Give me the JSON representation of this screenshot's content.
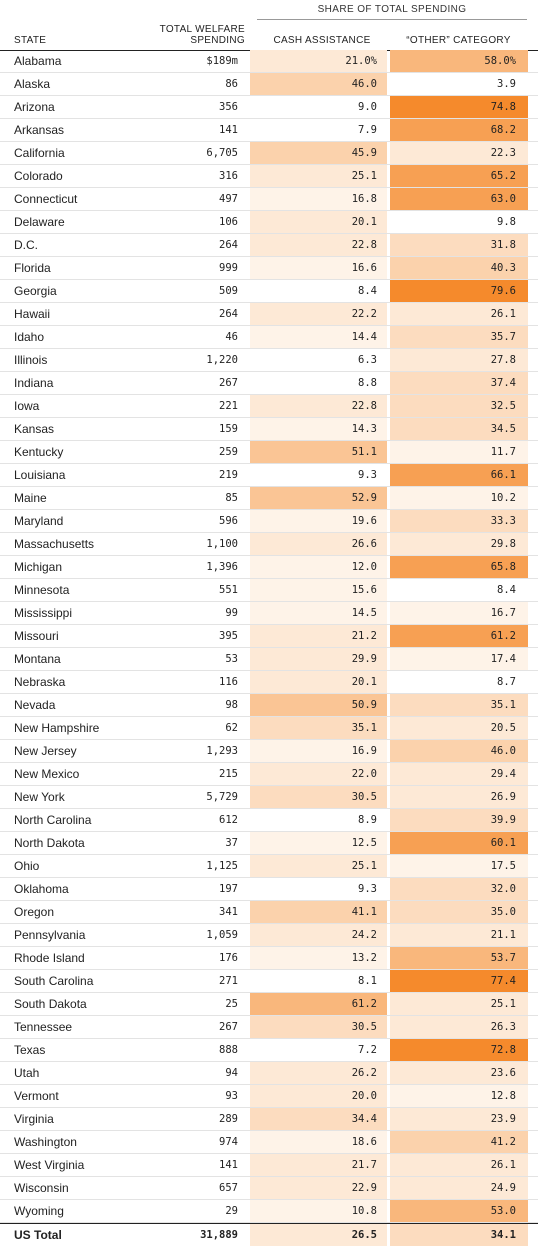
{
  "header": {
    "group_label": "SHARE OF TOTAL SPENDING",
    "state_label": "STATE",
    "total_label_1": "TOTAL WELFARE",
    "total_label_2": "SPENDING",
    "cash_label": "CASH ASSISTANCE",
    "other_label": "“OTHER” CATEGORY"
  },
  "colors": {
    "scale": [
      "#ffffff",
      "#fde9d6",
      "#fbd2ac",
      "#f9b77c",
      "#f7a053",
      "#f58a2c"
    ]
  },
  "rows": [
    {
      "state": "Alabama",
      "total": "$189m",
      "cash": "21.0%",
      "other": "58.0%",
      "cash_v": 21.0,
      "other_v": 58.0
    },
    {
      "state": "Alaska",
      "total": "86",
      "cash": "46.0",
      "other": "3.9",
      "cash_v": 46.0,
      "other_v": 3.9
    },
    {
      "state": "Arizona",
      "total": "356",
      "cash": "9.0",
      "other": "74.8",
      "cash_v": 9.0,
      "other_v": 74.8
    },
    {
      "state": "Arkansas",
      "total": "141",
      "cash": "7.9",
      "other": "68.2",
      "cash_v": 7.9,
      "other_v": 68.2
    },
    {
      "state": "California",
      "total": "6,705",
      "cash": "45.9",
      "other": "22.3",
      "cash_v": 45.9,
      "other_v": 22.3
    },
    {
      "state": "Colorado",
      "total": "316",
      "cash": "25.1",
      "other": "65.2",
      "cash_v": 25.1,
      "other_v": 65.2
    },
    {
      "state": "Connecticut",
      "total": "497",
      "cash": "16.8",
      "other": "63.0",
      "cash_v": 16.8,
      "other_v": 63.0
    },
    {
      "state": "Delaware",
      "total": "106",
      "cash": "20.1",
      "other": "9.8",
      "cash_v": 20.1,
      "other_v": 9.8
    },
    {
      "state": "D.C.",
      "total": "264",
      "cash": "22.8",
      "other": "31.8",
      "cash_v": 22.8,
      "other_v": 31.8
    },
    {
      "state": "Florida",
      "total": "999",
      "cash": "16.6",
      "other": "40.3",
      "cash_v": 16.6,
      "other_v": 40.3
    },
    {
      "state": "Georgia",
      "total": "509",
      "cash": "8.4",
      "other": "79.6",
      "cash_v": 8.4,
      "other_v": 79.6
    },
    {
      "state": "Hawaii",
      "total": "264",
      "cash": "22.2",
      "other": "26.1",
      "cash_v": 22.2,
      "other_v": 26.1
    },
    {
      "state": "Idaho",
      "total": "46",
      "cash": "14.4",
      "other": "35.7",
      "cash_v": 14.4,
      "other_v": 35.7
    },
    {
      "state": "Illinois",
      "total": "1,220",
      "cash": "6.3",
      "other": "27.8",
      "cash_v": 6.3,
      "other_v": 27.8
    },
    {
      "state": "Indiana",
      "total": "267",
      "cash": "8.8",
      "other": "37.4",
      "cash_v": 8.8,
      "other_v": 37.4
    },
    {
      "state": "Iowa",
      "total": "221",
      "cash": "22.8",
      "other": "32.5",
      "cash_v": 22.8,
      "other_v": 32.5
    },
    {
      "state": "Kansas",
      "total": "159",
      "cash": "14.3",
      "other": "34.5",
      "cash_v": 14.3,
      "other_v": 34.5
    },
    {
      "state": "Kentucky",
      "total": "259",
      "cash": "51.1",
      "other": "11.7",
      "cash_v": 51.1,
      "other_v": 11.7
    },
    {
      "state": "Louisiana",
      "total": "219",
      "cash": "9.3",
      "other": "66.1",
      "cash_v": 9.3,
      "other_v": 66.1
    },
    {
      "state": "Maine",
      "total": "85",
      "cash": "52.9",
      "other": "10.2",
      "cash_v": 52.9,
      "other_v": 10.2
    },
    {
      "state": "Maryland",
      "total": "596",
      "cash": "19.6",
      "other": "33.3",
      "cash_v": 19.6,
      "other_v": 33.3
    },
    {
      "state": "Massachusetts",
      "total": "1,100",
      "cash": "26.6",
      "other": "29.8",
      "cash_v": 26.6,
      "other_v": 29.8
    },
    {
      "state": "Michigan",
      "total": "1,396",
      "cash": "12.0",
      "other": "65.8",
      "cash_v": 12.0,
      "other_v": 65.8
    },
    {
      "state": "Minnesota",
      "total": "551",
      "cash": "15.6",
      "other": "8.4",
      "cash_v": 15.6,
      "other_v": 8.4
    },
    {
      "state": "Mississippi",
      "total": "99",
      "cash": "14.5",
      "other": "16.7",
      "cash_v": 14.5,
      "other_v": 16.7
    },
    {
      "state": "Missouri",
      "total": "395",
      "cash": "21.2",
      "other": "61.2",
      "cash_v": 21.2,
      "other_v": 61.2
    },
    {
      "state": "Montana",
      "total": "53",
      "cash": "29.9",
      "other": "17.4",
      "cash_v": 29.9,
      "other_v": 17.4
    },
    {
      "state": "Nebraska",
      "total": "116",
      "cash": "20.1",
      "other": "8.7",
      "cash_v": 20.1,
      "other_v": 8.7
    },
    {
      "state": "Nevada",
      "total": "98",
      "cash": "50.9",
      "other": "35.1",
      "cash_v": 50.9,
      "other_v": 35.1
    },
    {
      "state": "New Hampshire",
      "total": "62",
      "cash": "35.1",
      "other": "20.5",
      "cash_v": 35.1,
      "other_v": 20.5
    },
    {
      "state": "New Jersey",
      "total": "1,293",
      "cash": "16.9",
      "other": "46.0",
      "cash_v": 16.9,
      "other_v": 46.0
    },
    {
      "state": "New Mexico",
      "total": "215",
      "cash": "22.0",
      "other": "29.4",
      "cash_v": 22.0,
      "other_v": 29.4
    },
    {
      "state": "New York",
      "total": "5,729",
      "cash": "30.5",
      "other": "26.9",
      "cash_v": 30.5,
      "other_v": 26.9
    },
    {
      "state": "North Carolina",
      "total": "612",
      "cash": "8.9",
      "other": "39.9",
      "cash_v": 8.9,
      "other_v": 39.9
    },
    {
      "state": "North Dakota",
      "total": "37",
      "cash": "12.5",
      "other": "60.1",
      "cash_v": 12.5,
      "other_v": 60.1
    },
    {
      "state": "Ohio",
      "total": "1,125",
      "cash": "25.1",
      "other": "17.5",
      "cash_v": 25.1,
      "other_v": 17.5
    },
    {
      "state": "Oklahoma",
      "total": "197",
      "cash": "9.3",
      "other": "32.0",
      "cash_v": 9.3,
      "other_v": 32.0
    },
    {
      "state": "Oregon",
      "total": "341",
      "cash": "41.1",
      "other": "35.0",
      "cash_v": 41.1,
      "other_v": 35.0
    },
    {
      "state": "Pennsylvania",
      "total": "1,059",
      "cash": "24.2",
      "other": "21.1",
      "cash_v": 24.2,
      "other_v": 21.1
    },
    {
      "state": "Rhode Island",
      "total": "176",
      "cash": "13.2",
      "other": "53.7",
      "cash_v": 13.2,
      "other_v": 53.7
    },
    {
      "state": "South Carolina",
      "total": "271",
      "cash": "8.1",
      "other": "77.4",
      "cash_v": 8.1,
      "other_v": 77.4
    },
    {
      "state": "South Dakota",
      "total": "25",
      "cash": "61.2",
      "other": "25.1",
      "cash_v": 61.2,
      "other_v": 25.1
    },
    {
      "state": "Tennessee",
      "total": "267",
      "cash": "30.5",
      "other": "26.3",
      "cash_v": 30.5,
      "other_v": 26.3
    },
    {
      "state": "Texas",
      "total": "888",
      "cash": "7.2",
      "other": "72.8",
      "cash_v": 7.2,
      "other_v": 72.8
    },
    {
      "state": "Utah",
      "total": "94",
      "cash": "26.2",
      "other": "23.6",
      "cash_v": 26.2,
      "other_v": 23.6
    },
    {
      "state": "Vermont",
      "total": "93",
      "cash": "20.0",
      "other": "12.8",
      "cash_v": 20.0,
      "other_v": 12.8
    },
    {
      "state": "Virginia",
      "total": "289",
      "cash": "34.4",
      "other": "23.9",
      "cash_v": 34.4,
      "other_v": 23.9
    },
    {
      "state": "Washington",
      "total": "974",
      "cash": "18.6",
      "other": "41.2",
      "cash_v": 18.6,
      "other_v": 41.2
    },
    {
      "state": "West Virginia",
      "total": "141",
      "cash": "21.7",
      "other": "26.1",
      "cash_v": 21.7,
      "other_v": 26.1
    },
    {
      "state": "Wisconsin",
      "total": "657",
      "cash": "22.9",
      "other": "24.9",
      "cash_v": 22.9,
      "other_v": 24.9
    },
    {
      "state": "Wyoming",
      "total": "29",
      "cash": "10.8",
      "other": "53.0",
      "cash_v": 10.8,
      "other_v": 53.0
    }
  ],
  "total_row": {
    "state": "US Total",
    "total": "31,889",
    "cash": "26.5",
    "other": "34.1",
    "cash_v": 26.5,
    "other_v": 34.1
  }
}
